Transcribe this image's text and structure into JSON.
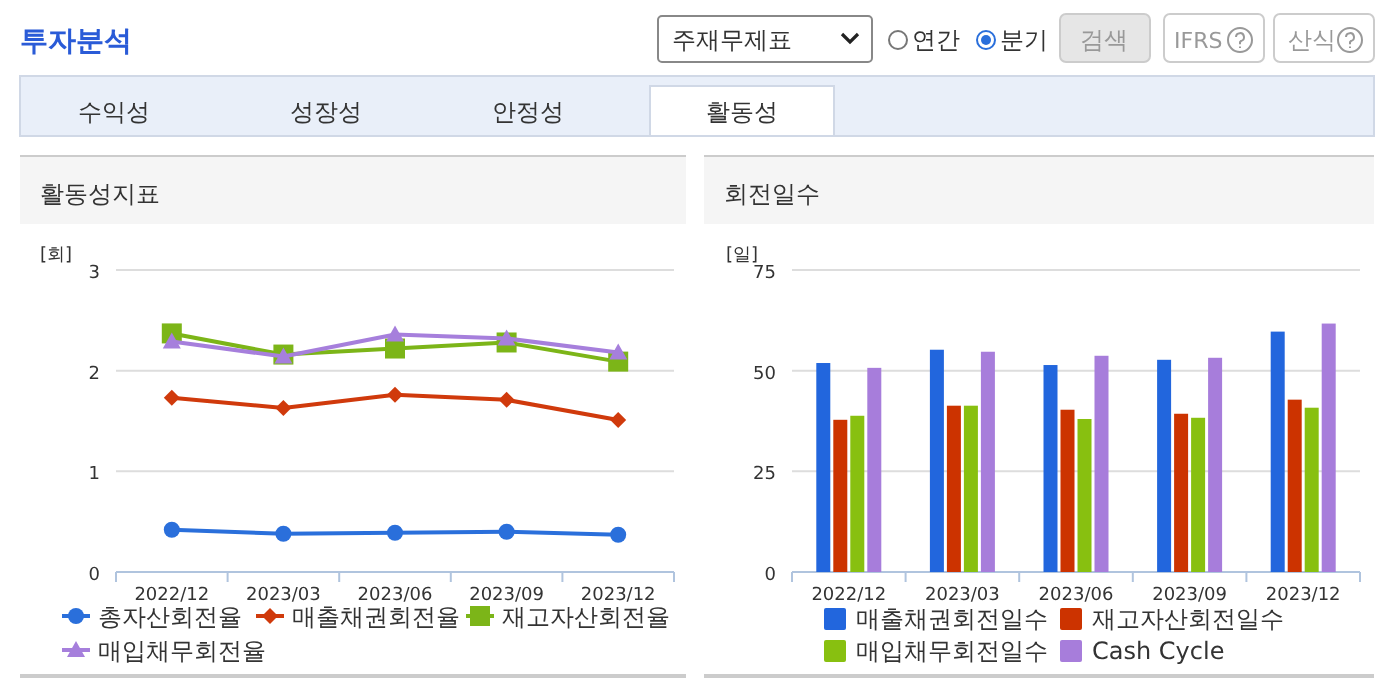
{
  "chart_data": [
    {
      "type": "other",
      "title": "투자분석",
      "annotations": [
        "주재무제표",
        "연간",
        "분기",
        "검색",
        "IFRS",
        "산식",
        "수익성",
        "성장성",
        "안정성",
        "활동성"
      ]
    },
    {
      "type": "line",
      "title": "활동성지표",
      "ylabel": "[회]",
      "categories": [
        "2022/12",
        "2023/03",
        "2023/06",
        "2023/09",
        "2023/12"
      ],
      "ylim": [
        0,
        3
      ],
      "yticks": [
        0,
        1,
        2,
        3
      ],
      "grid": "y",
      "legend": "bottom",
      "series": [
        {
          "name": "총자산회전율",
          "color": "#2a6fdb",
          "marker": "circle",
          "values": [
            0.42,
            0.38,
            0.39,
            0.4,
            0.37
          ]
        },
        {
          "name": "매출채권회전율",
          "color": "#d03a0c",
          "marker": "diamond",
          "values": [
            1.73,
            1.63,
            1.76,
            1.71,
            1.51
          ]
        },
        {
          "name": "재고자산회전율",
          "color": "#7cb518",
          "marker": "square",
          "values": [
            2.37,
            2.16,
            2.22,
            2.28,
            2.09
          ]
        },
        {
          "name": "매입채무회전율",
          "color": "#a67fdc",
          "marker": "triangle",
          "values": [
            2.29,
            2.14,
            2.36,
            2.32,
            2.18
          ]
        }
      ]
    },
    {
      "type": "bar",
      "title": "회전일수",
      "ylabel": "[일]",
      "categories": [
        "2022/12",
        "2023/03",
        "2023/06",
        "2023/09",
        "2023/12"
      ],
      "ylim": [
        0,
        75
      ],
      "yticks": [
        0,
        25,
        50,
        75
      ],
      "grid": "y",
      "legend": "bottom",
      "series": [
        {
          "name": "매출채권회전일수",
          "color": "#2266dd",
          "values": [
            51.9,
            55.2,
            51.4,
            52.7,
            59.7
          ]
        },
        {
          "name": "재고자산회전일수",
          "color": "#cc3300",
          "values": [
            37.8,
            41.3,
            40.3,
            39.3,
            42.8
          ]
        },
        {
          "name": "매입채무회전일수",
          "color": "#88c010",
          "values": [
            38.8,
            41.3,
            38.0,
            38.3,
            40.8
          ]
        },
        {
          "name": "Cash Cycle",
          "color": "#a77ddb",
          "values": [
            50.7,
            54.7,
            53.7,
            53.2,
            61.7
          ]
        }
      ]
    }
  ]
}
